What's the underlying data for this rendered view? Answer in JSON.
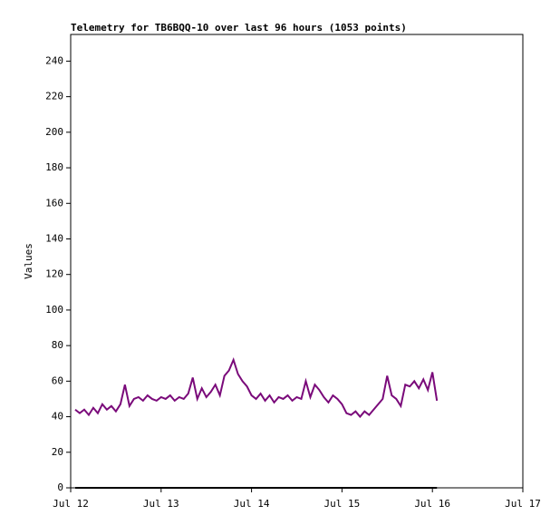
{
  "chart_data": {
    "type": "line",
    "title": "Telemetry for TB6BQQ-10 over last 96 hours (1053 points)",
    "y_label": "Values",
    "xlim": [
      0,
      5
    ],
    "xticks": [
      {
        "value": 0,
        "label": "Jul 12"
      },
      {
        "value": 1,
        "label": "Jul 13"
      },
      {
        "value": 2,
        "label": "Jul 14"
      },
      {
        "value": 3,
        "label": "Jul 15"
      },
      {
        "value": 4,
        "label": "Jul 16"
      },
      {
        "value": 5,
        "label": "Jul 17"
      }
    ],
    "ylim": [
      0,
      255
    ],
    "yticks": [
      0,
      20,
      40,
      60,
      80,
      100,
      120,
      140,
      160,
      180,
      200,
      220,
      240
    ],
    "series": [
      {
        "color": "#7a0a7a",
        "x": [
          0.05,
          0.1,
          0.15,
          0.2,
          0.25,
          0.3,
          0.35,
          0.4,
          0.45,
          0.5,
          0.55,
          0.6,
          0.65,
          0.7,
          0.75,
          0.8,
          0.85,
          0.9,
          0.95,
          1.0,
          1.05,
          1.1,
          1.15,
          1.2,
          1.25,
          1.3,
          1.35,
          1.4,
          1.45,
          1.5,
          1.55,
          1.6,
          1.65,
          1.7,
          1.75,
          1.8,
          1.85,
          1.9,
          1.95,
          2.0,
          2.05,
          2.1,
          2.15,
          2.2,
          2.25,
          2.3,
          2.35,
          2.4,
          2.45,
          2.5,
          2.55,
          2.6,
          2.65,
          2.7,
          2.75,
          2.8,
          2.85,
          2.9,
          2.95,
          3.0,
          3.05,
          3.1,
          3.15,
          3.2,
          3.25,
          3.3,
          3.35,
          3.4,
          3.45,
          3.5,
          3.55,
          3.6,
          3.65,
          3.7,
          3.75,
          3.8,
          3.85,
          3.9,
          3.95,
          4.0,
          4.05
        ],
        "values": [
          44,
          42,
          44,
          41,
          45,
          42,
          47,
          44,
          46,
          43,
          47,
          58,
          46,
          50,
          51,
          49,
          52,
          50,
          49,
          51,
          50,
          52,
          49,
          51,
          50,
          53,
          62,
          50,
          56,
          51,
          54,
          58,
          52,
          63,
          66,
          72,
          64,
          60,
          57,
          52,
          50,
          53,
          49,
          52,
          48,
          51,
          50,
          52,
          49,
          51,
          50,
          60,
          51,
          58,
          55,
          51,
          48,
          52,
          50,
          47,
          42,
          41,
          43,
          40,
          43,
          41,
          44,
          47,
          50,
          63,
          52,
          50,
          46,
          58,
          57,
          60,
          56,
          61,
          55,
          65,
          49
        ]
      },
      {
        "color": "#000000",
        "x": [
          0.05,
          4.05
        ],
        "values": [
          0,
          0
        ]
      }
    ]
  }
}
